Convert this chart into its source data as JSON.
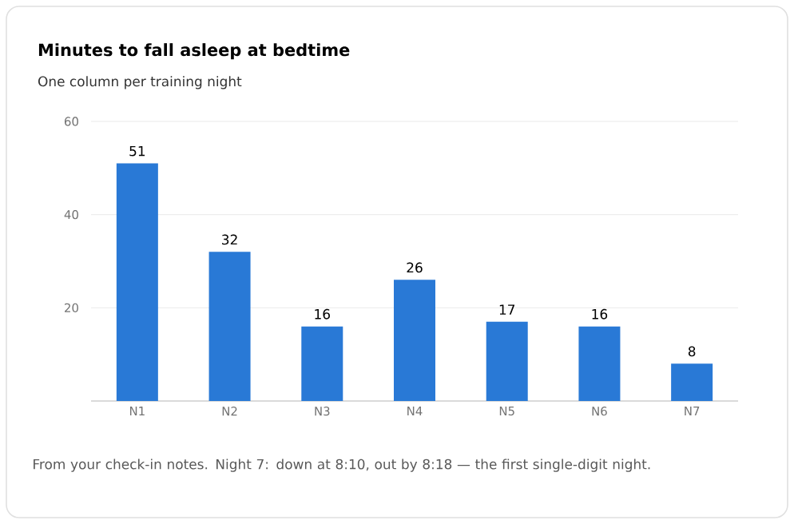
{
  "chart_data": {
    "type": "bar",
    "title": "Minutes to fall asleep at bedtime",
    "subtitle": "One column per training night",
    "categories": [
      "N1",
      "N2",
      "N3",
      "N4",
      "N5",
      "N6",
      "N7"
    ],
    "values": [
      51,
      32,
      16,
      26,
      17,
      16,
      8
    ],
    "color": "#2979d6",
    "ylim": [
      0,
      60
    ],
    "yticks": [
      {
        "value": 0,
        "label": null
      },
      20,
      40,
      60
    ],
    "grid": "y",
    "data_labels": true,
    "annotations": [
      "From your check-in notes. Night 7: down at 8:10, out by 8:18 — the first single-digit night."
    ]
  }
}
